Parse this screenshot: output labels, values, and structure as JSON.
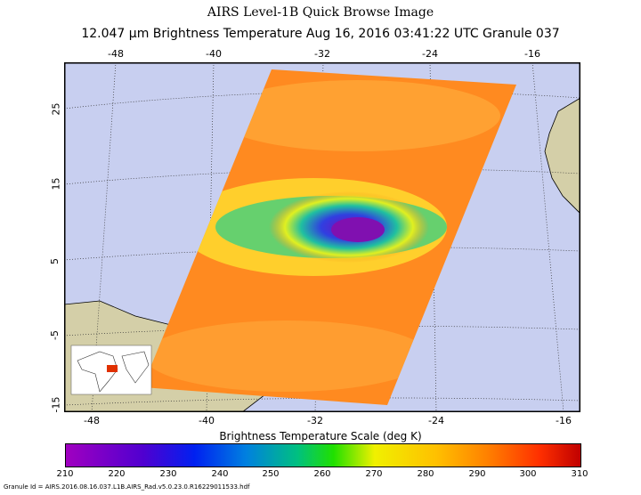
{
  "title": "AIRS Level-1B Quick Browse Image",
  "subtitle": "12.047 µm Brightness Temperature   Aug 16, 2016 03:41:22 UTC  Granule 037",
  "map": {
    "lon_labels_top": [
      "-48",
      "-40",
      "-32",
      "-24",
      "-16"
    ],
    "lon_labels_bottom": [
      "-48",
      "-40",
      "-32",
      "-24",
      "-16"
    ],
    "lat_labels": [
      "25",
      "15",
      "5",
      "-5",
      "-15"
    ],
    "colors": {
      "ocean": "#c8cff0",
      "land": "#d4cfa8",
      "swath_warm": "#ff8a20"
    }
  },
  "colorbar": {
    "title": "Brightness Temperature Scale (deg K)",
    "ticks": [
      "210",
      "220",
      "230",
      "240",
      "250",
      "260",
      "270",
      "280",
      "290",
      "300",
      "310"
    ]
  },
  "granule_id": "Granule Id = AIRS.2016.08.16.037.L1B.AIRS_Rad.v5.0.23.0.R16229011533.hdf"
}
